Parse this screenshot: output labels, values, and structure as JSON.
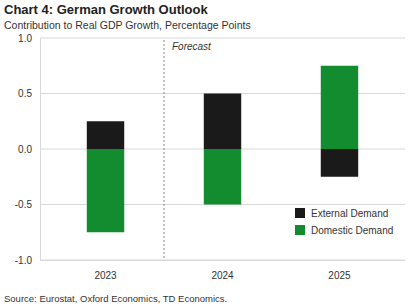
{
  "chart_data": {
    "type": "bar",
    "title": "Chart 4: German Growth Outlook",
    "subtitle": "Contribution to Real GDP Growth, Percentage Points",
    "source": "Source: Eurostat, Oxford Economics, TD Economics.",
    "annotations": [
      {
        "text": "Forecast",
        "category": "2024"
      }
    ],
    "categories": [
      "2023",
      "2024",
      "2025"
    ],
    "series": [
      {
        "name": "External Demand",
        "color": "#1a1a1a",
        "values": [
          0.25,
          0.5,
          -0.25
        ]
      },
      {
        "name": "Domestic Demand",
        "color": "#128c2e",
        "values": [
          -0.75,
          -0.5,
          0.75
        ]
      }
    ],
    "stacked": true,
    "ylim": [
      -1.0,
      1.0
    ],
    "yticks": [
      {
        "value": -1.0,
        "label": "-1.0"
      },
      {
        "value": -0.5,
        "label": "-0.5"
      },
      {
        "value": 0,
        "label": "0.0"
      },
      {
        "value": 0.5,
        "label": "0.5"
      },
      {
        "value": 1.0,
        "label": "1.0"
      }
    ],
    "grid": true,
    "legend": "lower right"
  }
}
